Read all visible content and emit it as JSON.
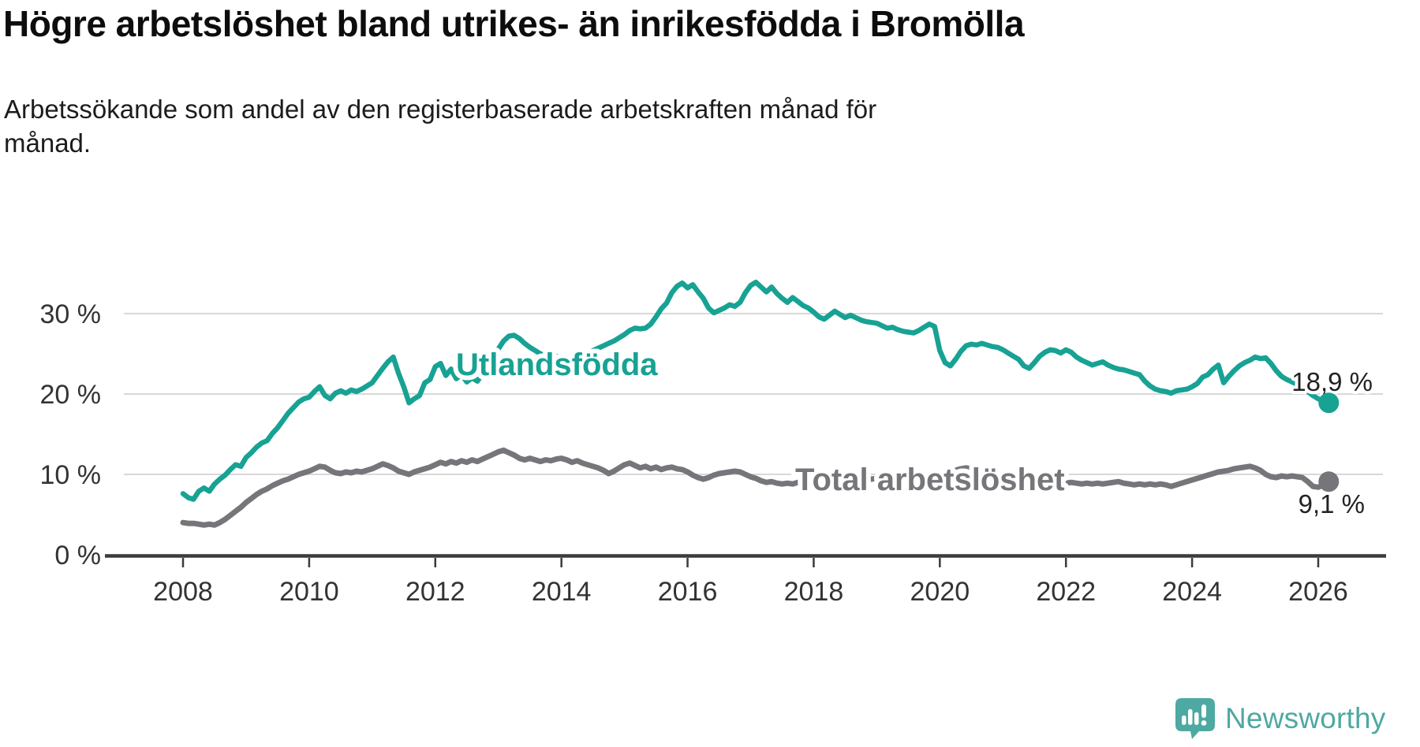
{
  "header": {
    "title": "Högre arbetslöshet bland utrikes- än inrikesfödda i Bromölla",
    "subtitle": "Arbetssökande som andel av den registerbaserade arbetskraften månad för\nmånad."
  },
  "chart_data": {
    "type": "line",
    "unit": "%",
    "x_start_year": 2008,
    "points_per_year": 12,
    "x_tick_years": [
      2008,
      2010,
      2012,
      2014,
      2016,
      2018,
      2020,
      2022,
      2024,
      2026
    ],
    "y_ticks": [
      {
        "value": 0,
        "label": "0 %"
      },
      {
        "value": 10,
        "label": "10 %"
      },
      {
        "value": 20,
        "label": "20 %"
      },
      {
        "value": 30,
        "label": "30 %"
      }
    ],
    "ylim": [
      0,
      36
    ],
    "grid": "horizontal",
    "legend_position": "inline-on-line",
    "series": [
      {
        "name": "Utlandsfödda",
        "color": "#17a294",
        "end_label": "18,9 %",
        "last_value": 18.9,
        "values": [
          7.6,
          7.1,
          6.9,
          7.9,
          8.3,
          7.9,
          8.8,
          9.4,
          9.9,
          10.6,
          11.2,
          11.0,
          12.1,
          12.7,
          13.4,
          13.9,
          14.2,
          15.1,
          15.8,
          16.7,
          17.6,
          18.3,
          19.0,
          19.4,
          19.6,
          20.3,
          20.9,
          19.8,
          19.4,
          20.1,
          20.4,
          20.1,
          20.5,
          20.3,
          20.6,
          21.0,
          21.4,
          22.3,
          23.2,
          24.0,
          24.6,
          22.6,
          20.9,
          18.9,
          19.4,
          19.8,
          21.4,
          21.8,
          23.4,
          23.8,
          22.3,
          23.1,
          21.9,
          22.4,
          21.5,
          22.0,
          21.6,
          22.5,
          23.2,
          24.2,
          25.6,
          26.6,
          27.2,
          27.3,
          26.9,
          26.3,
          25.8,
          25.4,
          25.0,
          24.8,
          24.6,
          24.7,
          24.6,
          24.4,
          24.3,
          24.5,
          24.8,
          25.1,
          25.4,
          25.7,
          26.0,
          26.3,
          26.6,
          27.0,
          27.4,
          27.9,
          28.2,
          28.1,
          28.2,
          28.7,
          29.6,
          30.6,
          31.3,
          32.6,
          33.4,
          33.8,
          33.2,
          33.6,
          32.7,
          31.9,
          30.7,
          30.1,
          30.4,
          30.7,
          31.1,
          30.9,
          31.4,
          32.6,
          33.5,
          33.9,
          33.3,
          32.7,
          33.3,
          32.5,
          31.9,
          31.4,
          32.0,
          31.5,
          31.0,
          30.7,
          30.2,
          29.6,
          29.3,
          29.8,
          30.3,
          29.9,
          29.5,
          29.8,
          29.5,
          29.2,
          29.0,
          28.9,
          28.8,
          28.5,
          28.2,
          28.3,
          28.0,
          27.8,
          27.7,
          27.6,
          27.9,
          28.3,
          28.7,
          28.4,
          25.4,
          23.9,
          23.5,
          24.3,
          25.3,
          26.0,
          26.2,
          26.1,
          26.3,
          26.1,
          25.9,
          25.8,
          25.5,
          25.1,
          24.7,
          24.3,
          23.5,
          23.2,
          23.9,
          24.7,
          25.2,
          25.5,
          25.4,
          25.1,
          25.5,
          25.2,
          24.6,
          24.2,
          23.9,
          23.6,
          23.8,
          24.0,
          23.6,
          23.3,
          23.1,
          23.0,
          22.8,
          22.6,
          22.4,
          21.6,
          21.0,
          20.6,
          20.4,
          20.3,
          20.1,
          20.4,
          20.5,
          20.6,
          20.9,
          21.3,
          22.1,
          22.4,
          23.1,
          23.6,
          21.4,
          22.2,
          22.9,
          23.5,
          23.9,
          24.2,
          24.6,
          24.4,
          24.5,
          23.8,
          22.9,
          22.2,
          21.8,
          21.5,
          21.2,
          20.8,
          20.3,
          19.8,
          19.4,
          19.1,
          18.9
        ]
      },
      {
        "name": "Total arbetslöshet",
        "color": "#76757a",
        "end_label": "9,1 %",
        "last_value": 9.1,
        "values": [
          4.0,
          3.9,
          3.9,
          3.8,
          3.7,
          3.8,
          3.7,
          4.0,
          4.4,
          4.9,
          5.4,
          5.9,
          6.5,
          7.0,
          7.5,
          7.9,
          8.2,
          8.6,
          8.9,
          9.2,
          9.4,
          9.7,
          10.0,
          10.2,
          10.4,
          10.7,
          11.0,
          10.9,
          10.5,
          10.2,
          10.1,
          10.3,
          10.2,
          10.4,
          10.3,
          10.5,
          10.7,
          11.0,
          11.3,
          11.1,
          10.8,
          10.4,
          10.2,
          10.0,
          10.3,
          10.5,
          10.7,
          10.9,
          11.2,
          11.5,
          11.3,
          11.6,
          11.4,
          11.7,
          11.5,
          11.8,
          11.6,
          11.9,
          12.2,
          12.5,
          12.8,
          13.0,
          12.7,
          12.4,
          12.0,
          11.8,
          12.0,
          11.8,
          11.6,
          11.8,
          11.7,
          11.9,
          12.0,
          11.8,
          11.5,
          11.7,
          11.4,
          11.2,
          11.0,
          10.8,
          10.5,
          10.1,
          10.4,
          10.8,
          11.2,
          11.4,
          11.1,
          10.8,
          11.0,
          10.7,
          10.9,
          10.6,
          10.8,
          10.9,
          10.7,
          10.6,
          10.3,
          9.9,
          9.6,
          9.4,
          9.6,
          9.9,
          10.1,
          10.2,
          10.3,
          10.4,
          10.3,
          10.0,
          9.7,
          9.5,
          9.2,
          9.0,
          9.1,
          8.9,
          8.8,
          8.9,
          8.8,
          9.0,
          9.1,
          9.2,
          9.3,
          9.4,
          9.3,
          9.5,
          9.4,
          9.6,
          9.5,
          9.6,
          9.5,
          9.4,
          9.5,
          9.4,
          9.5,
          9.4,
          9.6,
          9.5,
          9.7,
          9.6,
          9.8,
          9.7,
          9.9,
          9.8,
          10.0,
          9.9,
          10.0,
          10.1,
          10.3,
          10.5,
          10.7,
          10.8,
          10.7,
          10.6,
          10.5,
          10.4,
          10.2,
          10.1,
          10.0,
          9.9,
          9.7,
          9.6,
          9.4,
          9.3,
          9.2,
          9.1,
          9.2,
          9.1,
          9.0,
          9.0,
          8.9,
          9.0,
          8.9,
          8.8,
          8.9,
          8.8,
          8.9,
          8.8,
          8.9,
          9.0,
          9.1,
          8.9,
          8.8,
          8.7,
          8.8,
          8.7,
          8.8,
          8.7,
          8.8,
          8.7,
          8.5,
          8.7,
          8.9,
          9.1,
          9.3,
          9.5,
          9.7,
          9.9,
          10.1,
          10.3,
          10.4,
          10.5,
          10.7,
          10.8,
          10.9,
          11.0,
          10.8,
          10.5,
          10.0,
          9.7,
          9.6,
          9.8,
          9.7,
          9.8,
          9.7,
          9.6,
          9.1,
          8.5,
          8.4,
          8.7,
          9.1
        ]
      }
    ]
  },
  "footer": {
    "brand": "Newsworthy",
    "logo_icon": "speech-bubble-bar-chart-exclamation",
    "brand_color": "#4ea9a2"
  }
}
